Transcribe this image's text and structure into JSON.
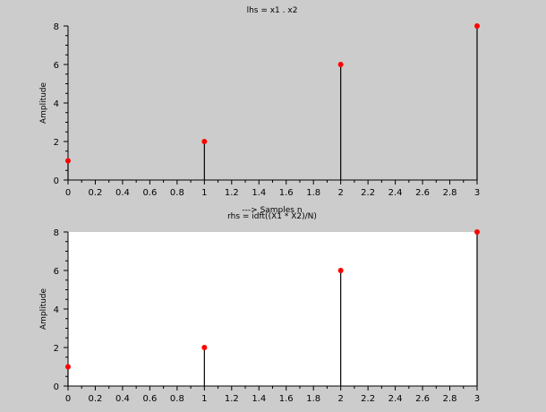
{
  "window": {
    "background": "#cccccc"
  },
  "chart_data": [
    {
      "type": "stem",
      "title": "lhs = x1 . x2",
      "xlabel": "---> Samples n",
      "ylabel": "Amplitude",
      "xlim": [
        0,
        3
      ],
      "ylim": [
        0,
        8
      ],
      "x_ticks": [
        "0",
        "0.2",
        "0.4",
        "0.6",
        "0.8",
        "1",
        "1.2",
        "1.4",
        "1.6",
        "1.8",
        "2",
        "2.2",
        "2.4",
        "2.6",
        "2.8",
        "3"
      ],
      "y_ticks": [
        "0",
        "2",
        "4",
        "6",
        "8"
      ],
      "x": [
        0,
        1,
        2,
        3
      ],
      "values": [
        1,
        2,
        6,
        8
      ],
      "plot_background": "#cccccc",
      "stem_color": "#000000",
      "marker_color": "#ff0000",
      "grid": false
    },
    {
      "type": "stem",
      "title": "rhs = idft((X1 * X2)/N)",
      "xlabel": "",
      "ylabel": "Amplitude",
      "xlim": [
        0,
        3
      ],
      "ylim": [
        0,
        8
      ],
      "x_ticks": [
        "0",
        "0.2",
        "0.4",
        "0.6",
        "0.8",
        "1",
        "1.2",
        "1.4",
        "1.6",
        "1.8",
        "2",
        "2.2",
        "2.4",
        "2.6",
        "2.8",
        "3"
      ],
      "y_ticks": [
        "0",
        "2",
        "4",
        "6",
        "8"
      ],
      "x": [
        0,
        1,
        2,
        3
      ],
      "values": [
        1,
        2,
        6,
        8
      ],
      "plot_background": "#ffffff",
      "stem_color": "#000000",
      "marker_color": "#ff0000",
      "grid": false
    }
  ]
}
